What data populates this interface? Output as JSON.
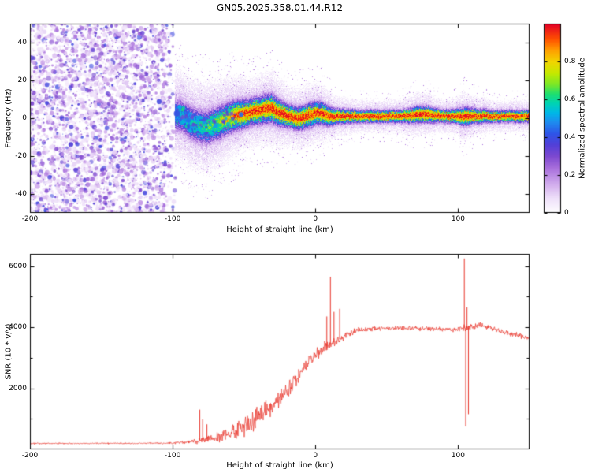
{
  "title": "GN05.2025.358.01.44.R12",
  "background": "#ffffff",
  "chart_data": [
    {
      "type": "heatmap",
      "title": "",
      "xlabel": "Height of straight line (km)",
      "ylabel": "Frequency (Hz)",
      "xlim": [
        -200,
        150
      ],
      "ylim": [
        -50,
        50
      ],
      "xticks": [
        -200,
        -100,
        0,
        100
      ],
      "xtick_labels": [
        "-200",
        "-100",
        "0",
        "100"
      ],
      "yticks": [
        -40,
        -20,
        0,
        20,
        40
      ],
      "ytick_labels": [
        "-40",
        "-20",
        "0",
        "20",
        "40"
      ],
      "grid": false,
      "colorbar": {
        "label": "Normalized spectral amplitude",
        "lim": [
          0,
          1
        ],
        "ticks": [
          0,
          0.2,
          0.4,
          0.6,
          0.8
        ],
        "tick_labels": [
          "0",
          "0.2",
          "0.4",
          "0.6",
          "0.8"
        ]
      },
      "colormap": [
        [
          0.0,
          "#ffffff"
        ],
        [
          0.08,
          "#efe0fa"
        ],
        [
          0.16,
          "#cfa8ec"
        ],
        [
          0.24,
          "#a86fdc"
        ],
        [
          0.3,
          "#7e4ad0"
        ],
        [
          0.36,
          "#5340d8"
        ],
        [
          0.42,
          "#2f55e8"
        ],
        [
          0.48,
          "#1e8cf0"
        ],
        [
          0.53,
          "#00b8e8"
        ],
        [
          0.58,
          "#00d4b4"
        ],
        [
          0.63,
          "#1ee070"
        ],
        [
          0.68,
          "#7ae828"
        ],
        [
          0.74,
          "#c6ea00"
        ],
        [
          0.8,
          "#f2d500"
        ],
        [
          0.86,
          "#ffa000"
        ],
        [
          0.92,
          "#ff5000"
        ],
        [
          1.0,
          "#e40026"
        ]
      ],
      "noise_region": {
        "x_range": [
          -200,
          -97
        ],
        "amplitude_range": [
          0.06,
          0.4
        ],
        "description": "dense purple speckle noise on white background, fading out near -100 km"
      },
      "signal": {
        "description": "narrow spectral ridge near 0 Hz from -97 km to 150 km; red core with green/cyan/blue/purple halo",
        "center_keypoints": [
          [
            -98,
            2
          ],
          [
            -93,
            1
          ],
          [
            -88,
            -2
          ],
          [
            -82,
            -4
          ],
          [
            -76,
            -5
          ],
          [
            -70,
            -3
          ],
          [
            -64,
            -1
          ],
          [
            -58,
            1
          ],
          [
            -52,
            2
          ],
          [
            -46,
            3
          ],
          [
            -40,
            4
          ],
          [
            -34,
            5
          ],
          [
            -30,
            5
          ],
          [
            -26,
            3
          ],
          [
            -22,
            2
          ],
          [
            -18,
            1
          ],
          [
            -14,
            0
          ],
          [
            -10,
            0
          ],
          [
            -6,
            1
          ],
          [
            -2,
            2
          ],
          [
            2,
            3
          ],
          [
            6,
            2
          ],
          [
            10,
            1
          ],
          [
            16,
            1
          ],
          [
            24,
            1
          ],
          [
            40,
            1
          ],
          [
            60,
            1
          ],
          [
            72,
            2
          ],
          [
            78,
            2
          ],
          [
            90,
            1
          ],
          [
            102,
            1
          ],
          [
            108,
            1
          ],
          [
            120,
            1
          ],
          [
            150,
            1
          ]
        ],
        "peak_keypoints": [
          [
            -98,
            0.5
          ],
          [
            -90,
            0.55
          ],
          [
            -80,
            0.6
          ],
          [
            -70,
            0.7
          ],
          [
            -62,
            0.8
          ],
          [
            -55,
            0.9
          ],
          [
            -45,
            0.95
          ],
          [
            0,
            0.95
          ],
          [
            150,
            0.95
          ]
        ],
        "sigma_keypoints": [
          [
            -98,
            5.5
          ],
          [
            -75,
            5.5
          ],
          [
            -60,
            5
          ],
          [
            -45,
            4.2
          ],
          [
            -30,
            4.5
          ],
          [
            -18,
            3.5
          ],
          [
            -5,
            3.8
          ],
          [
            5,
            3.5
          ],
          [
            15,
            2.4
          ],
          [
            30,
            2.0
          ],
          [
            60,
            2.0
          ],
          [
            70,
            2.6
          ],
          [
            80,
            2.6
          ],
          [
            88,
            2.0
          ],
          [
            98,
            2.2
          ],
          [
            104,
            3.0
          ],
          [
            112,
            2.4
          ],
          [
            125,
            1.9
          ],
          [
            150,
            1.9
          ]
        ],
        "blobs": [
          {
            "x": -97,
            "y": 2.5,
            "r": 4,
            "v": 0.4
          },
          {
            "x": -89,
            "y": -1,
            "r": 3,
            "v": 0.45
          },
          {
            "x": -70,
            "y": -4,
            "r": 3,
            "v": 0.5
          },
          {
            "x": -52,
            "y": 2,
            "r": 3,
            "v": 0.45
          },
          {
            "x": 3,
            "y": 6,
            "r": 2.5,
            "v": 0.4
          }
        ]
      }
    },
    {
      "type": "line",
      "color": "#e8342a",
      "xlabel": "Height of straight line (km)",
      "ylabel": "SNR (10 * v/v)",
      "xlim": [
        -200,
        150
      ],
      "ylim": [
        0,
        6400
      ],
      "xticks": [
        -200,
        -100,
        0,
        100
      ],
      "xtick_labels": [
        "-200",
        "-100",
        "0",
        "100"
      ],
      "yticks": [
        2000,
        4000,
        6000
      ],
      "ytick_labels": [
        "2000",
        "4000",
        "6000"
      ],
      "yticks_minor": [
        1000,
        3000,
        5000
      ],
      "grid": false,
      "series": [
        {
          "name": "SNR",
          "base_keypoints": [
            [
              -200,
              190
            ],
            [
              -160,
              195
            ],
            [
              -130,
              195
            ],
            [
              -110,
              200
            ],
            [
              -100,
              210
            ],
            [
              -92,
              230
            ],
            [
              -85,
              260
            ],
            [
              -80,
              300
            ],
            [
              -75,
              330
            ],
            [
              -70,
              380
            ],
            [
              -65,
              430
            ],
            [
              -60,
              520
            ],
            [
              -55,
              640
            ],
            [
              -50,
              760
            ],
            [
              -45,
              900
            ],
            [
              -40,
              1050
            ],
            [
              -35,
              1250
            ],
            [
              -30,
              1450
            ],
            [
              -25,
              1650
            ],
            [
              -20,
              1900
            ],
            [
              -15,
              2200
            ],
            [
              -10,
              2550
            ],
            [
              -5,
              2850
            ],
            [
              0,
              3100
            ],
            [
              5,
              3300
            ],
            [
              10,
              3450
            ],
            [
              15,
              3550
            ],
            [
              20,
              3700
            ],
            [
              25,
              3820
            ],
            [
              30,
              3900
            ],
            [
              40,
              3950
            ],
            [
              55,
              3980
            ],
            [
              70,
              3960
            ],
            [
              85,
              3940
            ],
            [
              95,
              3920
            ],
            [
              100,
              3950
            ],
            [
              103,
              3960
            ],
            [
              108,
              3980
            ],
            [
              115,
              4050
            ],
            [
              125,
              3950
            ],
            [
              135,
              3800
            ],
            [
              150,
              3650
            ]
          ],
          "noise_keypoints": [
            [
              -200,
              28
            ],
            [
              -115,
              28
            ],
            [
              -100,
              40
            ],
            [
              -90,
              70
            ],
            [
              -82,
              120
            ],
            [
              -75,
              160
            ],
            [
              -68,
              220
            ],
            [
              -60,
              300
            ],
            [
              -50,
              360
            ],
            [
              -40,
              400
            ],
            [
              -30,
              380
            ],
            [
              -20,
              360
            ],
            [
              -12,
              300
            ],
            [
              -5,
              260
            ],
            [
              2,
              230
            ],
            [
              8,
              210
            ],
            [
              15,
              160
            ],
            [
              22,
              130
            ],
            [
              30,
              110
            ],
            [
              45,
              95
            ],
            [
              70,
              90
            ],
            [
              95,
              95
            ],
            [
              103,
              130
            ],
            [
              110,
              140
            ],
            [
              120,
              100
            ],
            [
              150,
              95
            ]
          ],
          "spikes": [
            {
              "x": -81,
              "y": 1300
            },
            {
              "x": -79,
              "y": 980
            },
            {
              "x": -76,
              "y": 820
            },
            {
              "x": 8,
              "y": 4350
            },
            {
              "x": 10.5,
              "y": 5650
            },
            {
              "x": 13,
              "y": 4500
            },
            {
              "x": 17,
              "y": 4600
            },
            {
              "x": 104.3,
              "y": 6250
            },
            {
              "x": 105.3,
              "y": 750
            },
            {
              "x": 106.2,
              "y": 4650
            },
            {
              "x": 107.2,
              "y": 1150
            }
          ]
        }
      ]
    }
  ]
}
